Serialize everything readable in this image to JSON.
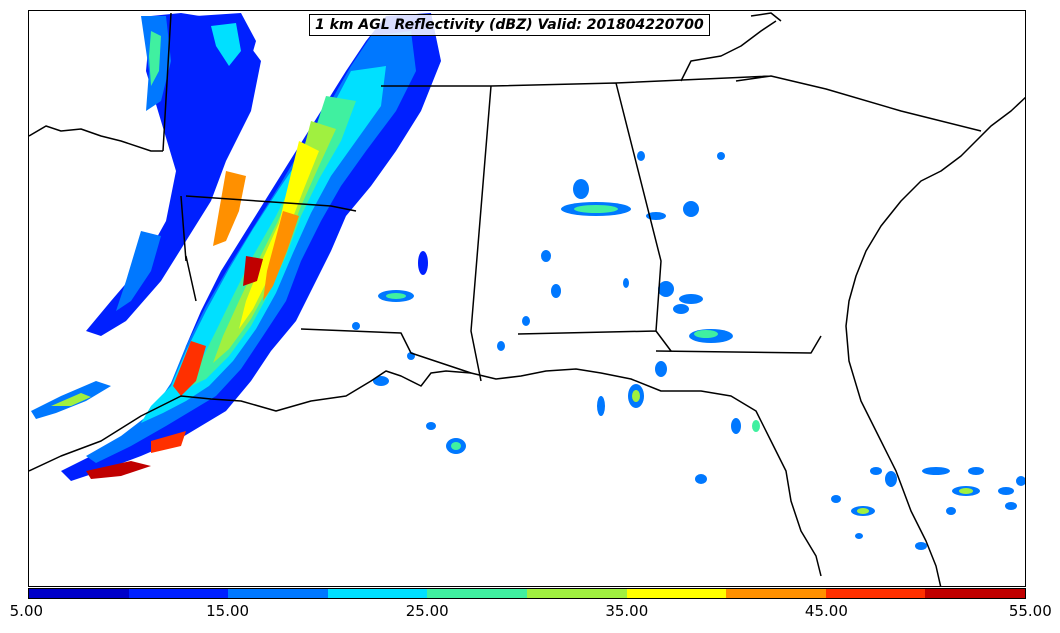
{
  "title": "1 km AGL Reflectivity (dBZ) Valid: 201804220700",
  "colorbar": {
    "min": 5.0,
    "max": 55.0,
    "step": 5.0,
    "colors": [
      "#0000c8",
      "#0020ff",
      "#0078ff",
      "#00e0ff",
      "#40f0a0",
      "#a0f040",
      "#ffff00",
      "#ff9000",
      "#ff3000",
      "#c00000"
    ],
    "tick_labels": [
      "5.00",
      "15.00",
      "25.00",
      "35.00",
      "45.00",
      "55.00"
    ]
  },
  "map": {
    "region": "Southeastern United States",
    "variable": "1 km AGL Reflectivity",
    "units": "dBZ",
    "valid_time": "201804220700"
  }
}
